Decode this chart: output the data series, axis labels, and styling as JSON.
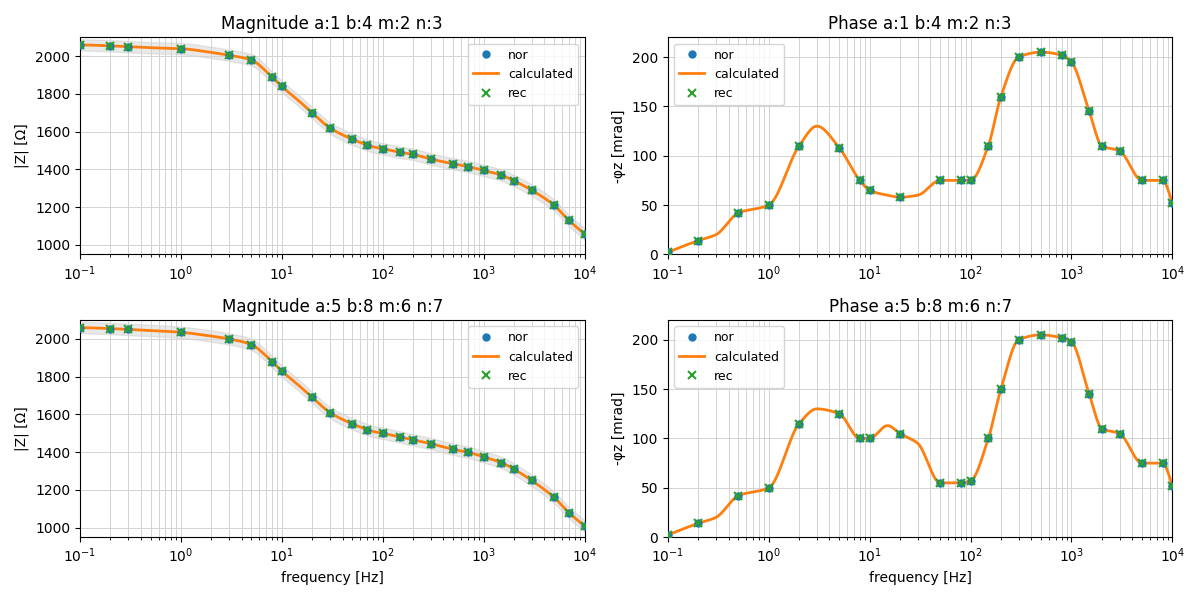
{
  "titles": [
    "Magnitude a:1 b:4 m:2 n:3",
    "Phase a:1 b:4 m:2 n:3",
    "Magnitude a:5 b:8 m:6 n:7",
    "Phase a:5 b:8 m:6 n:7"
  ],
  "ylabels_mag": "|Z| [Ω]",
  "ylabels_phase": "-φz [mrad]",
  "xlabel": "frequency [Hz]",
  "xlim": [
    0.1,
    10000
  ],
  "ylim_mag": [
    950,
    2100
  ],
  "ylim_phase": [
    0,
    220
  ],
  "yticks_mag": [
    1000,
    1200,
    1400,
    1600,
    1800,
    2000
  ],
  "yticks_phase": [
    0,
    50,
    100,
    150,
    200
  ],
  "legend_labels": [
    "nor",
    "calculated",
    "rec"
  ],
  "dot_color": "#1f77b4",
  "line_color": "#ff7f0e",
  "x_color": "#2ca02c",
  "shade_color": "#c0c0c0",
  "mag1_freq": [
    0.1,
    0.2,
    0.3,
    0.5,
    1.0,
    2.0,
    3.0,
    5.0,
    7.0,
    8.0,
    10.0,
    15.0,
    20.0,
    30.0,
    50.0,
    70.0,
    80.0,
    100.0,
    150.0,
    200.0,
    300.0,
    500.0,
    700.0,
    1000.0,
    1500.0,
    2000.0,
    3000.0,
    5000.0,
    7000.0,
    10000.0
  ],
  "mag1_vals": [
    2060,
    2055,
    2050,
    2045,
    2040,
    2020,
    2005,
    1980,
    1920,
    1890,
    1840,
    1760,
    1700,
    1620,
    1560,
    1530,
    1520,
    1510,
    1490,
    1480,
    1455,
    1430,
    1415,
    1395,
    1370,
    1340,
    1290,
    1210,
    1130,
    1060
  ],
  "mag2_freq": [
    0.1,
    0.2,
    0.3,
    0.5,
    1.0,
    2.0,
    3.0,
    5.0,
    7.0,
    8.0,
    10.0,
    15.0,
    20.0,
    30.0,
    50.0,
    70.0,
    80.0,
    100.0,
    150.0,
    200.0,
    300.0,
    500.0,
    700.0,
    1000.0,
    1500.0,
    2000.0,
    3000.0,
    5000.0,
    7000.0,
    10000.0
  ],
  "mag2_vals": [
    2060,
    2055,
    2050,
    2045,
    2035,
    2015,
    2000,
    1970,
    1910,
    1880,
    1830,
    1750,
    1690,
    1610,
    1550,
    1520,
    1510,
    1500,
    1480,
    1465,
    1445,
    1415,
    1400,
    1375,
    1345,
    1310,
    1250,
    1160,
    1080,
    1010
  ],
  "phase1_freq": [
    0.1,
    0.2,
    0.3,
    0.5,
    1.0,
    2.0,
    3.0,
    5.0,
    8.0,
    10.0,
    15.0,
    20.0,
    30.0,
    50.0,
    80.0,
    100.0,
    150.0,
    200.0,
    300.0,
    500.0,
    800.0,
    1000.0,
    1500.0,
    2000.0,
    3000.0,
    5000.0,
    8000.0,
    10000.0
  ],
  "phase1_vals": [
    2,
    14,
    20,
    42,
    50,
    110,
    130,
    108,
    75,
    65,
    60,
    58,
    60,
    75,
    75,
    75,
    110,
    160,
    200,
    205,
    202,
    195,
    145,
    110,
    105,
    75,
    75,
    52
  ],
  "phase2_freq": [
    0.1,
    0.2,
    0.3,
    0.5,
    1.0,
    2.0,
    3.0,
    5.0,
    8.0,
    10.0,
    15.0,
    20.0,
    30.0,
    50.0,
    80.0,
    100.0,
    150.0,
    200.0,
    300.0,
    500.0,
    800.0,
    1000.0,
    1500.0,
    2000.0,
    3000.0,
    5000.0,
    8000.0,
    10000.0
  ],
  "phase2_vals": [
    2,
    14,
    20,
    42,
    50,
    115,
    130,
    125,
    100,
    100,
    113,
    105,
    95,
    55,
    55,
    57,
    100,
    150,
    200,
    205,
    202,
    198,
    145,
    110,
    105,
    75,
    75,
    52
  ]
}
